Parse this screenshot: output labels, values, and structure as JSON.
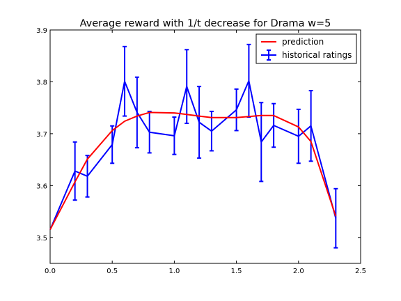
{
  "chart_data": {
    "type": "line",
    "title": "Average reward with 1/t decrease for Drama w=5",
    "xlabel": "",
    "ylabel": "",
    "xlim": [
      0.0,
      2.5
    ],
    "ylim": [
      3.45,
      3.9
    ],
    "xticks": [
      "0.0",
      "0.5",
      "1.0",
      "1.5",
      "2.0",
      "2.5"
    ],
    "yticks": [
      "3.5",
      "3.6",
      "3.7",
      "3.8",
      "3.9"
    ],
    "grid": false,
    "legend": "top-right",
    "series": [
      {
        "name": "prediction",
        "color": "#ff0000",
        "x": [
          0.0,
          0.2,
          0.3,
          0.5,
          0.6,
          0.7,
          0.8,
          1.0,
          1.1,
          1.2,
          1.3,
          1.5,
          1.6,
          1.7,
          1.8,
          2.0,
          2.1,
          2.3
        ],
        "y": [
          3.515,
          3.607,
          3.651,
          3.706,
          3.724,
          3.734,
          3.741,
          3.74,
          3.737,
          3.734,
          3.731,
          3.731,
          3.733,
          3.735,
          3.735,
          3.713,
          3.685,
          3.541
        ]
      },
      {
        "name": "historical ratings",
        "color": "#0000ff",
        "x": [
          0.0,
          0.2,
          0.3,
          0.5,
          0.6,
          0.7,
          0.8,
          1.0,
          1.1,
          1.2,
          1.3,
          1.5,
          1.6,
          1.7,
          1.8,
          2.0,
          2.1,
          2.3
        ],
        "y": [
          3.515,
          3.628,
          3.618,
          3.679,
          3.801,
          3.741,
          3.703,
          3.696,
          3.791,
          3.722,
          3.705,
          3.746,
          3.802,
          3.684,
          3.716,
          3.695,
          3.715,
          3.537
        ],
        "error": [
          0.0,
          0.056,
          0.04,
          0.036,
          0.067,
          0.068,
          0.04,
          0.036,
          0.071,
          0.069,
          0.038,
          0.04,
          0.07,
          0.076,
          0.042,
          0.052,
          0.068,
          0.057
        ]
      }
    ]
  }
}
